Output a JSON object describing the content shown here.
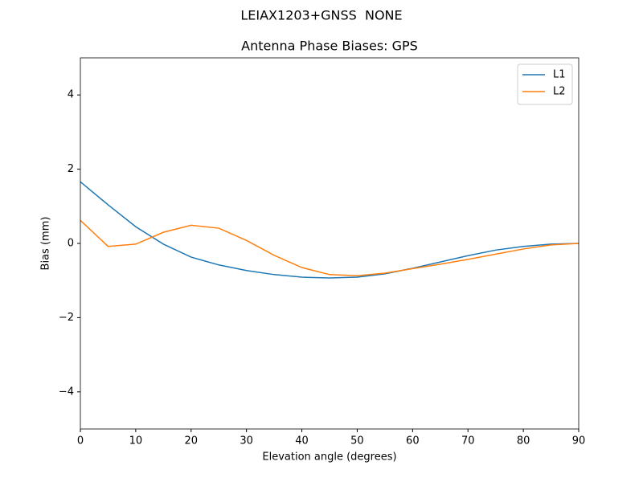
{
  "chart_data": {
    "type": "line",
    "suptitle": "LEIAX1203+GNSS  NONE",
    "title": "Antenna Phase Biases: GPS",
    "xlabel": "Elevation angle (degrees)",
    "ylabel": "Bias (mm)",
    "x": [
      0,
      5,
      10,
      15,
      20,
      25,
      30,
      35,
      40,
      45,
      50,
      55,
      60,
      65,
      70,
      75,
      80,
      85,
      90
    ],
    "series": [
      {
        "name": "L1",
        "color": "#1f77b4",
        "values": [
          1.66,
          1.04,
          0.45,
          -0.02,
          -0.37,
          -0.58,
          -0.73,
          -0.84,
          -0.91,
          -0.93,
          -0.91,
          -0.82,
          -0.67,
          -0.5,
          -0.33,
          -0.18,
          -0.08,
          -0.02,
          0
        ]
      },
      {
        "name": "L2",
        "color": "#ff7f0e",
        "values": [
          0.62,
          -0.08,
          -0.02,
          0.3,
          0.49,
          0.41,
          0.08,
          -0.32,
          -0.65,
          -0.84,
          -0.87,
          -0.8,
          -0.68,
          -0.56,
          -0.43,
          -0.29,
          -0.15,
          -0.04,
          0
        ]
      }
    ],
    "xlim": [
      0,
      90
    ],
    "xticks": [
      0,
      10,
      20,
      30,
      40,
      50,
      60,
      70,
      80,
      90
    ],
    "ylim": [
      -5,
      5
    ],
    "yticks": [
      {
        "value": -4,
        "label": "−4"
      },
      {
        "value": -2,
        "label": "−2"
      },
      0,
      2,
      4
    ],
    "legend": "upper right",
    "grid": false
  }
}
